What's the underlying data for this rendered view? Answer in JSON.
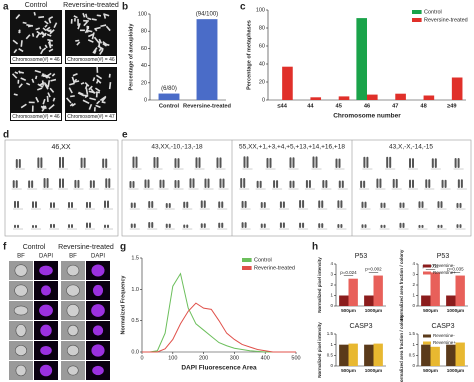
{
  "panel_labels": [
    "a",
    "b",
    "c",
    "d",
    "e",
    "f",
    "g",
    "h"
  ],
  "panel_a": {
    "headers": [
      "Control",
      "Reversine-treated"
    ],
    "captions": [
      "Chromosome(#) = 46",
      "Chromosome(#) = 46",
      "Chromosome(#) = 46",
      "Chromosome(#) = 47"
    ]
  },
  "panel_d": {
    "caption": "46,XX"
  },
  "panel_e": {
    "captions": [
      "43,XX,-10,-13,-18",
      "55,XX,+1,+3,+4,+5,+13,+14,+16,+18",
      "43,X,-X,-14,-15"
    ]
  },
  "panel_f": {
    "headers": [
      "Control",
      "Reversine-treated"
    ],
    "channels": [
      "BF",
      "DAPI",
      "BF",
      "DAPI"
    ]
  },
  "chart_data": [
    {
      "type": "bar",
      "ylabel": "Percentage of aneuploidy",
      "categories": [
        "Control",
        "Reversine-treated"
      ],
      "values": [
        7.5,
        94
      ],
      "color": "#4a6cc8",
      "bar_labels": [
        "(6/80)",
        "(94/100)"
      ],
      "ylim": [
        0,
        100
      ],
      "yticks": [
        0,
        20,
        40,
        60,
        80,
        100
      ]
    },
    {
      "type": "bar",
      "ylabel": "Percentage of metaphases",
      "xlabel": "Chromosome number",
      "categories": [
        "≤44",
        "44",
        "45",
        "46",
        "47",
        "48",
        "≥49"
      ],
      "series": [
        {
          "name": "Control",
          "color": "#1aa34a",
          "values": [
            0,
            0,
            0,
            91,
            0,
            0,
            0
          ]
        },
        {
          "name": "Reversine-treated",
          "color": "#e0302a",
          "values": [
            37,
            3,
            4,
            6,
            7,
            5,
            25
          ]
        }
      ],
      "ylim": [
        0,
        100
      ],
      "yticks": [
        0,
        20,
        40,
        60,
        80,
        100
      ],
      "legend": "upper right"
    },
    {
      "type": "line",
      "ylabel": "Normalized Frequency",
      "xlabel": "DAPI Fluorescence Area",
      "x": [
        0,
        25,
        50,
        75,
        100,
        125,
        150,
        175,
        200,
        225,
        250,
        275,
        300,
        325,
        350,
        375,
        400,
        425,
        450,
        475,
        500
      ],
      "series": [
        {
          "name": "Control",
          "color": "#6cbf5c",
          "values": [
            0,
            0,
            0.02,
            0.3,
            1.05,
            1.25,
            0.7,
            0.45,
            0.35,
            0.25,
            0.15,
            0.1,
            0.06,
            0.04,
            0.02,
            0.01,
            0,
            0,
            0,
            0,
            0
          ]
        },
        {
          "name": "Reverine-treated",
          "color": "#e0504a",
          "values": [
            0,
            0,
            0,
            0.05,
            0.2,
            0.45,
            0.65,
            0.78,
            0.7,
            0.68,
            0.5,
            0.3,
            0.2,
            0.12,
            0.08,
            0.04,
            0.02,
            0,
            0,
            0,
            0
          ]
        }
      ],
      "xlim": [
        0,
        500
      ],
      "xticks": [
        0,
        100,
        200,
        300,
        400,
        500
      ],
      "ylim": [
        0,
        1.5
      ],
      "yticks": [
        {
          "value": 0,
          "label": "0.0"
        },
        {
          "value": 0.5,
          "label": "0.5"
        },
        {
          "value": 1,
          "label": "1.0"
        },
        {
          "value": 1.5,
          "label": "1.5"
        }
      ],
      "legend": "upper right"
    },
    {
      "type": "bar",
      "title": "P53",
      "ylabel": "Normalized pixel intensity",
      "categories": [
        "500μm",
        "1000μm"
      ],
      "series": [
        {
          "color": "#8b1c1c",
          "values": [
            1,
            1
          ]
        },
        {
          "color": "#e8605a",
          "values": [
            2.6,
            2.9
          ]
        }
      ],
      "p_values": [
        "p=0.024",
        "p=0.002"
      ],
      "ylim": [
        0,
        4
      ],
      "yticks": [
        0,
        1,
        2,
        3,
        4
      ]
    },
    {
      "type": "bar",
      "title": "P53",
      "ylabel": "Normalized area fraction / colony",
      "categories": [
        "500μm",
        "1000μm"
      ],
      "series": [
        {
          "name": "Reversine-",
          "color": "#8b1c1c",
          "values": [
            1,
            1
          ]
        },
        {
          "name": "Reversine+",
          "color": "#e8605a",
          "values": [
            3.2,
            2.9
          ]
        }
      ],
      "p_values": [
        "p=0.011",
        "p=0.035"
      ],
      "ylim": [
        0,
        4
      ],
      "yticks": [
        0,
        1,
        2,
        3,
        4
      ],
      "legend": "upper right"
    },
    {
      "type": "bar",
      "title": "CASP3",
      "ylabel": "Normalized pixel intensity",
      "categories": [
        "500μm",
        "1000μm"
      ],
      "series": [
        {
          "color": "#5a3a1a",
          "values": [
            1,
            1
          ]
        },
        {
          "color": "#e8b830",
          "values": [
            1.05,
            1.05
          ]
        }
      ],
      "ylim": [
        0,
        1.5
      ],
      "yticks": [
        0,
        0.5,
        1,
        1.5
      ]
    },
    {
      "type": "bar",
      "title": "CASP3",
      "ylabel": "Normalized area fraction / colony",
      "categories": [
        "500μm",
        "1000μm"
      ],
      "series": [
        {
          "name": "Reversine-",
          "color": "#5a3a1a",
          "values": [
            1,
            1
          ]
        },
        {
          "name": "Reversine+",
          "color": "#e8b830",
          "values": [
            0.9,
            1.1
          ]
        }
      ],
      "ylim": [
        0,
        1.5
      ],
      "yticks": [
        0,
        0.5,
        1,
        1.5
      ],
      "legend": "upper right"
    }
  ]
}
